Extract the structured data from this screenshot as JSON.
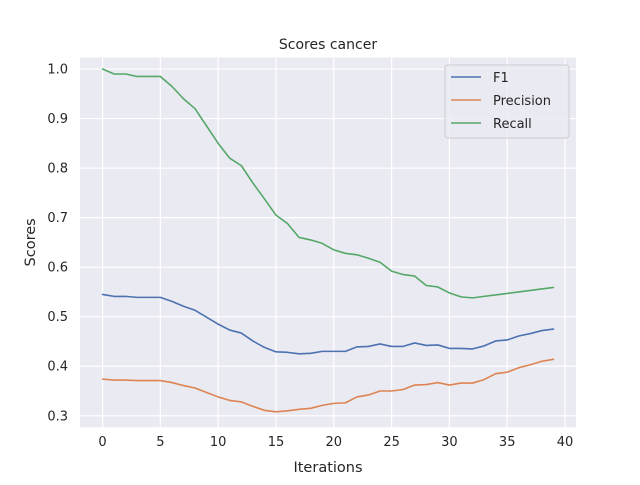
{
  "chart_data": {
    "type": "line",
    "title": "Scores cancer",
    "xlabel": "Iterations",
    "ylabel": "Scores",
    "xlim": [
      -1.95,
      40.95
    ],
    "ylim": [
      0.2769,
      1.0231
    ],
    "xticks": [
      0,
      5,
      10,
      15,
      20,
      25,
      30,
      35,
      40
    ],
    "xtick_labels": [
      "0",
      "5",
      "10",
      "15",
      "20",
      "25",
      "30",
      "35",
      "40"
    ],
    "yticks": [
      0.3,
      0.4,
      0.5,
      0.6,
      0.7,
      0.8,
      0.9,
      1.0
    ],
    "ytick_labels": [
      "0.3",
      "0.4",
      "0.5",
      "0.6",
      "0.7",
      "0.8",
      "0.9",
      "1.0"
    ],
    "grid": true,
    "legend_position": "top-right",
    "x": [
      0,
      1,
      2,
      3,
      4,
      5,
      6,
      7,
      8,
      9,
      10,
      11,
      12,
      13,
      14,
      15,
      16,
      17,
      18,
      19,
      20,
      21,
      22,
      23,
      24,
      25,
      26,
      27,
      28,
      29,
      30,
      31,
      32,
      33,
      34,
      35,
      36,
      37,
      38,
      39
    ],
    "series": [
      {
        "name": "F1",
        "color": "#4c72b0",
        "values": [
          0.545,
          0.541,
          0.541,
          0.539,
          0.539,
          0.539,
          0.531,
          0.521,
          0.513,
          0.499,
          0.485,
          0.473,
          0.467,
          0.451,
          0.438,
          0.429,
          0.428,
          0.425,
          0.426,
          0.43,
          0.43,
          0.43,
          0.439,
          0.44,
          0.445,
          0.44,
          0.44,
          0.447,
          0.442,
          0.443,
          0.436,
          0.436,
          0.435,
          0.441,
          0.451,
          0.453,
          0.461,
          0.466,
          0.472,
          0.475
        ]
      },
      {
        "name": "Precision",
        "color": "#dd8452",
        "values": [
          0.374,
          0.372,
          0.372,
          0.371,
          0.371,
          0.371,
          0.367,
          0.361,
          0.356,
          0.347,
          0.338,
          0.331,
          0.328,
          0.319,
          0.311,
          0.308,
          0.31,
          0.313,
          0.315,
          0.321,
          0.325,
          0.326,
          0.338,
          0.342,
          0.35,
          0.35,
          0.353,
          0.362,
          0.363,
          0.367,
          0.362,
          0.366,
          0.366,
          0.373,
          0.385,
          0.388,
          0.397,
          0.403,
          0.41,
          0.414
        ]
      },
      {
        "name": "Recall",
        "color": "#55a868",
        "values": [
          1.0,
          0.99,
          0.99,
          0.985,
          0.985,
          0.985,
          0.965,
          0.94,
          0.92,
          0.885,
          0.85,
          0.82,
          0.805,
          0.77,
          0.738,
          0.705,
          0.688,
          0.66,
          0.655,
          0.648,
          0.635,
          0.628,
          0.625,
          0.618,
          0.61,
          0.592,
          0.585,
          0.582,
          0.563,
          0.56,
          0.548,
          0.54,
          0.538,
          0.541,
          0.544,
          0.547,
          0.55,
          0.553,
          0.556,
          0.559
        ]
      }
    ]
  }
}
